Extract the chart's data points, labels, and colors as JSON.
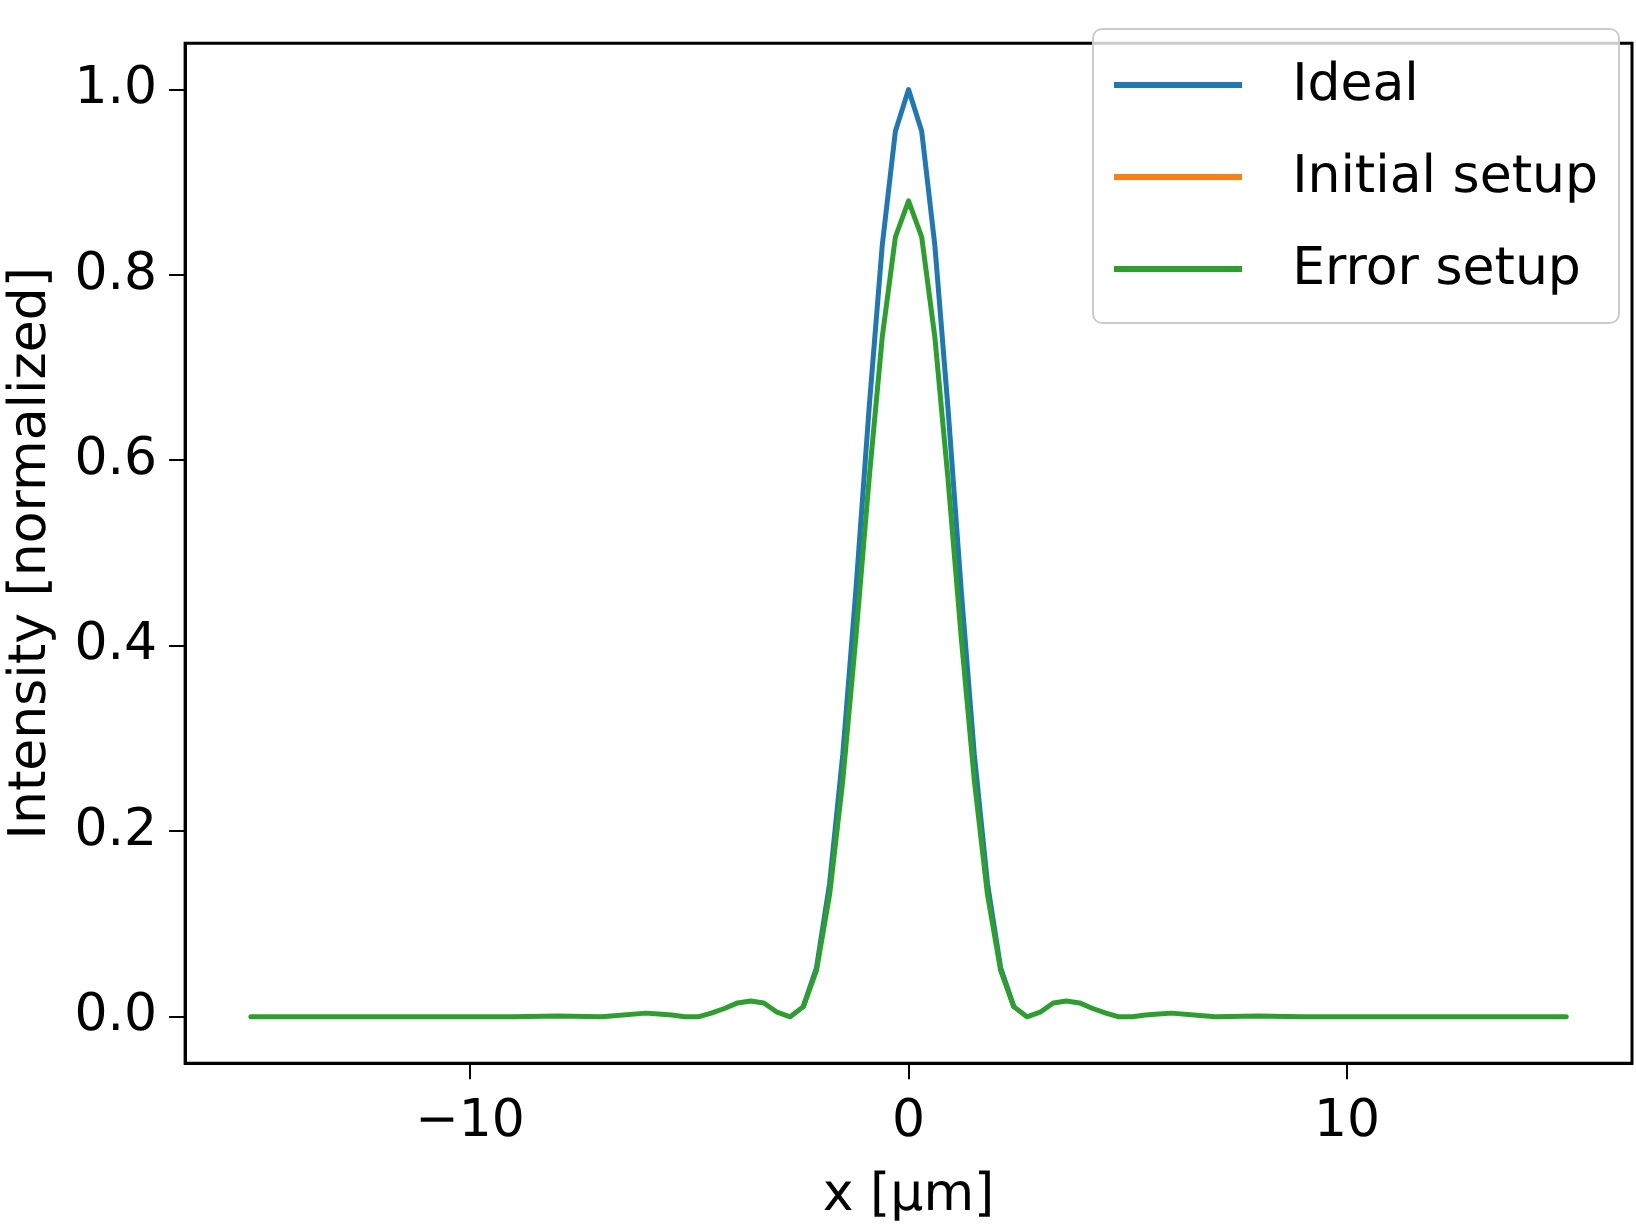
{
  "chart_data": {
    "type": "line",
    "xlabel": "x [μm]",
    "ylabel": "Intensity [normalized]",
    "x": [
      -15,
      -14,
      -13,
      -12,
      -11,
      -10,
      -9,
      -8,
      -7,
      -6.0,
      -5.7,
      -5.4,
      -5.1,
      -4.8,
      -4.5,
      -4.2,
      -3.9,
      -3.6,
      -3.3,
      -3.0,
      -2.7,
      -2.4,
      -2.1,
      -1.8,
      -1.5,
      -1.2,
      -0.9,
      -0.6,
      -0.3,
      0,
      0.3,
      0.6,
      0.9,
      1.2,
      1.5,
      1.8,
      2.1,
      2.4,
      2.7,
      3.0,
      3.3,
      3.6,
      3.9,
      4.2,
      4.5,
      4.8,
      5.1,
      5.4,
      5.7,
      6.0,
      7,
      8,
      9,
      10,
      11,
      12,
      13,
      14,
      15
    ],
    "series": [
      {
        "name": "Ideal",
        "color": "#1f77b4",
        "values": [
          null,
          null,
          null,
          null,
          null,
          null,
          null,
          null,
          null,
          null,
          null,
          null,
          null,
          null,
          null,
          null,
          null,
          null,
          null,
          null,
          null,
          0.011,
          0.053,
          0.144,
          0.283,
          0.461,
          0.656,
          0.832,
          0.955,
          1.0,
          0.955,
          0.832,
          0.656,
          0.461,
          0.283,
          0.144,
          0.053,
          0.011,
          null,
          null,
          null,
          null,
          null,
          null,
          null,
          null,
          null,
          null,
          null,
          null,
          null,
          null,
          null,
          null,
          null,
          null,
          null,
          null,
          null
        ]
      },
      {
        "name": "Initial setup",
        "color": "#ff7f0e",
        "values": [
          null,
          null,
          null,
          null,
          null,
          null,
          null,
          null,
          null,
          null,
          null,
          null,
          null,
          null,
          null,
          null,
          null,
          null,
          null,
          null,
          null,
          null,
          null,
          null,
          null,
          null,
          null,
          null,
          null,
          null,
          null,
          null,
          null,
          null,
          null,
          null,
          null,
          null,
          null,
          null,
          null,
          null,
          null,
          null,
          null,
          null,
          null,
          null,
          null,
          null,
          null,
          null,
          null,
          null,
          null,
          null,
          null,
          null,
          null
        ]
      },
      {
        "name": "Error setup",
        "color": "#2ca02c",
        "values": [
          0,
          0,
          0,
          0,
          0,
          0,
          0,
          0.001,
          0,
          0.004,
          0.003,
          0.002,
          0,
          0,
          0.004,
          0.009,
          0.015,
          0.017,
          0.015,
          0.005,
          0,
          0.011,
          0.05,
          0.132,
          0.255,
          0.41,
          0.58,
          0.733,
          0.841,
          0.88,
          0.841,
          0.733,
          0.58,
          0.41,
          0.255,
          0.132,
          0.05,
          0.011,
          0,
          0.005,
          0.015,
          0.017,
          0.015,
          0.009,
          0.004,
          0,
          0,
          0.002,
          0.003,
          0.004,
          0,
          0.001,
          0,
          0,
          0,
          0,
          0,
          0,
          0
        ]
      }
    ],
    "xlim": [
      -16.5,
      16.5
    ],
    "xticks": [
      {
        "value": -10,
        "label": "−10"
      },
      0,
      10
    ],
    "ylim": [
      -0.05,
      1.05
    ],
    "yticks": [
      {
        "value": 0,
        "label": "0.0"
      },
      {
        "value": 0.2,
        "label": "0.2"
      },
      {
        "value": 0.4,
        "label": "0.4"
      },
      {
        "value": 0.6,
        "label": "0.6"
      },
      {
        "value": 0.8,
        "label": "0.8"
      },
      {
        "value": 1,
        "label": "1.0"
      }
    ],
    "grid": false,
    "legend": "top right",
    "marker": "none",
    "line_style": "solid"
  }
}
